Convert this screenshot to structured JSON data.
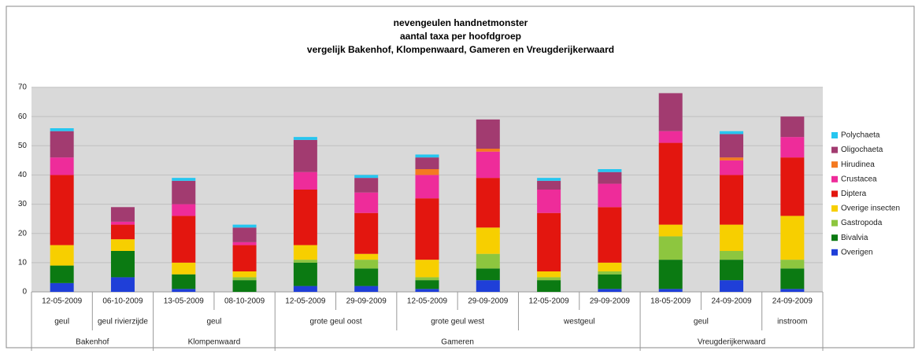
{
  "chart_data": {
    "type": "stacked-bar",
    "title": [
      "nevengeulen handnetmonster",
      "aantal taxa per hoofdgroep",
      "vergelijk Bakenhof, Klompenwaard, Gameren en Vreugderijkerwaard"
    ],
    "sites": [
      {
        "name": "Bakenhof",
        "groups": [
          {
            "name": "geul",
            "dates": [
              "12-05-2009"
            ]
          },
          {
            "name": "geul rivierzijde",
            "dates": [
              "06-10-2009"
            ]
          }
        ]
      },
      {
        "name": "Klompenwaard",
        "groups": [
          {
            "name": "geul",
            "dates": [
              "13-05-2009",
              "08-10-2009"
            ]
          }
        ]
      },
      {
        "name": "Gameren",
        "groups": [
          {
            "name": "grote geul oost",
            "dates": [
              "12-05-2009",
              "29-09-2009"
            ]
          },
          {
            "name": "grote geul west",
            "dates": [
              "12-05-2009",
              "29-09-2009"
            ]
          },
          {
            "name": "westgeul",
            "dates": [
              "12-05-2009",
              "29-09-2009"
            ]
          }
        ]
      },
      {
        "name": "Vreugderijkerwaard",
        "groups": [
          {
            "name": "geul",
            "dates": [
              "18-05-2009",
              "24-09-2009"
            ]
          },
          {
            "name": "instroom",
            "dates": [
              "24-09-2009"
            ]
          }
        ]
      }
    ],
    "series": [
      {
        "name": "Overigen",
        "color": "#1f3fd8",
        "values": [
          3,
          5,
          1,
          0,
          2,
          2,
          1,
          4,
          0,
          1,
          1,
          4,
          1
        ]
      },
      {
        "name": "Bivalvia",
        "color": "#0b7a12",
        "values": [
          6,
          9,
          5,
          4,
          8,
          6,
          3,
          4,
          4,
          5,
          10,
          7,
          7
        ]
      },
      {
        "name": "Gastropoda",
        "color": "#8dc63f",
        "values": [
          0,
          0,
          0,
          1,
          1,
          3,
          1,
          5,
          1,
          1,
          8,
          3,
          3
        ]
      },
      {
        "name": "Overige insecten",
        "color": "#f7cf00",
        "values": [
          7,
          4,
          4,
          2,
          5,
          2,
          6,
          9,
          2,
          3,
          4,
          9,
          15
        ]
      },
      {
        "name": "Diptera",
        "color": "#e3160f",
        "values": [
          24,
          5,
          16,
          9,
          19,
          14,
          21,
          17,
          20,
          19,
          28,
          17,
          20
        ]
      },
      {
        "name": "Crustacea",
        "color": "#ee2c9a",
        "values": [
          6,
          1,
          4,
          1,
          6,
          7,
          8,
          9,
          8,
          8,
          4,
          5,
          7
        ]
      },
      {
        "name": "Hirudinea",
        "color": "#f47920",
        "values": [
          0,
          0,
          0,
          0,
          0,
          0,
          2,
          1,
          0,
          0,
          0,
          1,
          0
        ]
      },
      {
        "name": "Oligochaeta",
        "color": "#a23b70",
        "values": [
          9,
          5,
          8,
          5,
          11,
          5,
          4,
          10,
          3,
          4,
          13,
          8,
          7
        ]
      },
      {
        "name": "Polychaeta",
        "color": "#26c6f0",
        "values": [
          1,
          0,
          1,
          1,
          1,
          1,
          1,
          0,
          1,
          1,
          0,
          1,
          0
        ]
      }
    ],
    "ylim": [
      0,
      70
    ],
    "yticks": [
      0,
      10,
      20,
      30,
      40,
      50,
      60,
      70
    ],
    "grid": true,
    "legend": "right"
  }
}
